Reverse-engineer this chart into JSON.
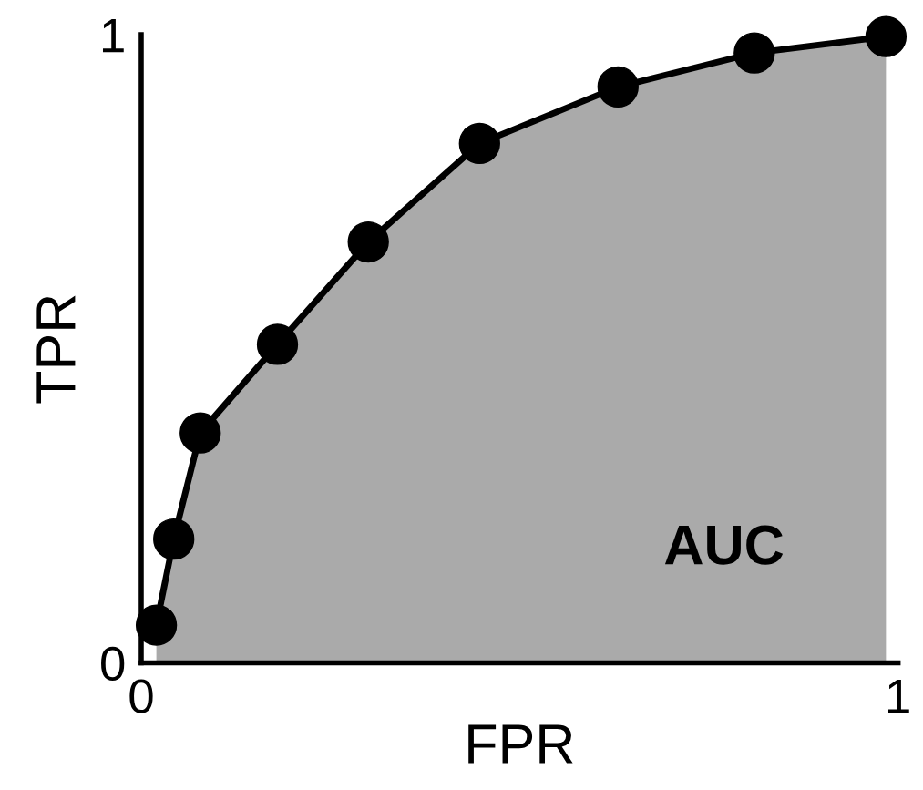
{
  "chart_data": {
    "type": "area",
    "xlabel": "FPR",
    "ylabel": "TPR",
    "x": [
      0.02,
      0.043,
      0.078,
      0.18,
      0.3,
      0.447,
      0.63,
      0.81,
      0.984
    ],
    "series": [
      {
        "color": "#000000",
        "values": [
          0.06,
          0.197,
          0.366,
          0.507,
          0.67,
          0.827,
          0.917,
          0.971,
          0.997
        ]
      }
    ],
    "xlim": [
      0,
      1
    ],
    "ylim": [
      0,
      1
    ],
    "xticks": [
      0,
      1
    ],
    "yticks": [
      0,
      1
    ],
    "grid": false,
    "legend": false,
    "marker": "circle",
    "line_style": "solid",
    "annotations": [
      "AUC"
    ]
  }
}
